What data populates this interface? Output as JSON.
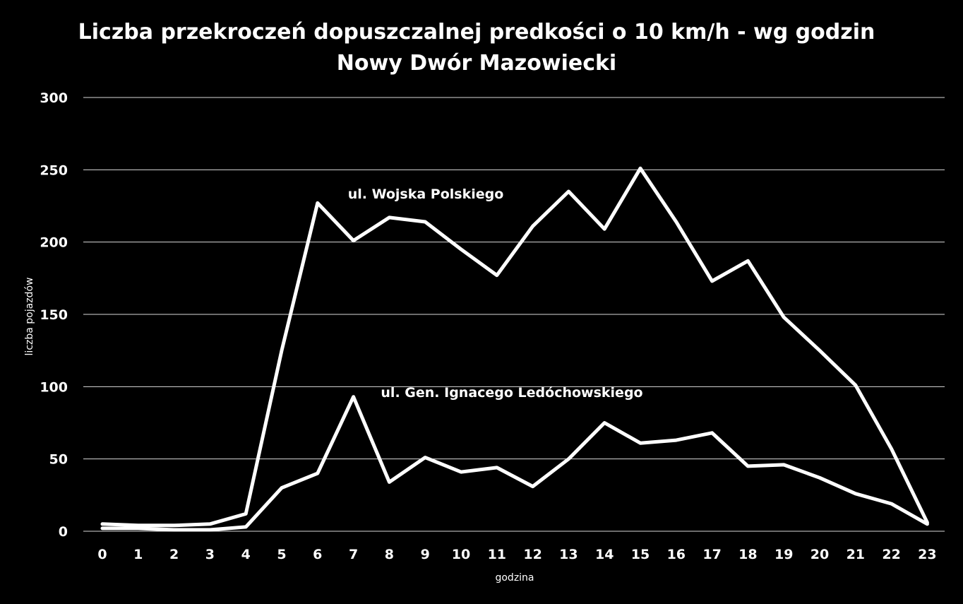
{
  "chart_data": {
    "type": "line",
    "title_line1": "Liczba przekroczeń dopuszczalnej predkości o 10 km/h - wg godzin",
    "title_line2": "Nowy Dwór Mazowiecki",
    "xlabel": "godzina",
    "ylabel": "liczba pojazdów",
    "ylim": [
      0,
      300
    ],
    "yticks": [
      0,
      50,
      100,
      150,
      200,
      250,
      300
    ],
    "grid": true,
    "categories": [
      "0",
      "1",
      "2",
      "3",
      "4",
      "5",
      "6",
      "7",
      "8",
      "9",
      "10",
      "11",
      "12",
      "13",
      "14",
      "15",
      "16",
      "17",
      "18",
      "19",
      "20",
      "21",
      "22",
      "23"
    ],
    "series": [
      {
        "name": "ul. Wojska Polskiego",
        "values": [
          5,
          4,
          4,
          5,
          12,
          125,
          227,
          201,
          217,
          214,
          195,
          177,
          211,
          235,
          209,
          251,
          214,
          173,
          187,
          148,
          125,
          101,
          57,
          6
        ]
      },
      {
        "name": "ul. Gen. Ignacego Ledóchowskiego",
        "values": [
          2,
          2,
          1,
          1,
          3,
          30,
          40,
          93,
          34,
          51,
          41,
          44,
          31,
          50,
          75,
          61,
          63,
          68,
          45,
          46,
          37,
          26,
          19,
          5
        ]
      }
    ],
    "colors": {
      "background": "#000000",
      "line": "#ffffff",
      "grid": "#d9d9d9"
    }
  }
}
